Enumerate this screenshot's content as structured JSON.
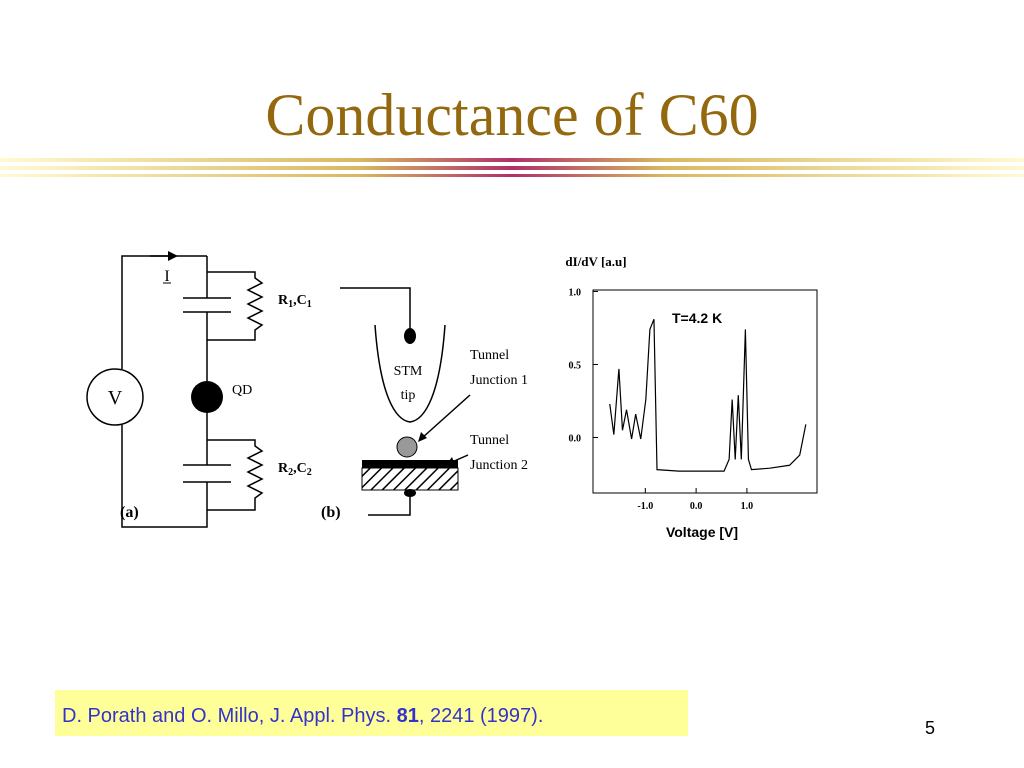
{
  "title": "Conductance of C60",
  "circuit": {
    "current": "I",
    "source": "V",
    "dot": "QD",
    "r1c1": [
      "R",
      "1",
      ",C",
      "1"
    ],
    "r2c2": [
      "R",
      "2",
      ",C",
      "2"
    ],
    "panel": "(a)"
  },
  "setup": {
    "tip": [
      "STM",
      "tip"
    ],
    "junction1": [
      "Tunnel",
      "Junction 1"
    ],
    "junction2": [
      "Tunnel",
      "Junction 2"
    ],
    "panel": "(b)"
  },
  "chart_data": {
    "type": "line",
    "ylabel": "dI/dV [a.u]",
    "xlabel": "Voltage [V]",
    "annotation": "T=4.2 K",
    "x": [
      -1.7,
      -1.62,
      -1.52,
      -1.45,
      -1.37,
      -1.27,
      -1.19,
      -1.09,
      -0.99,
      -0.91,
      -0.83,
      -0.77,
      -0.34,
      0.06,
      0.55,
      0.65,
      0.71,
      0.77,
      0.83,
      0.89,
      0.97,
      1.03,
      1.09,
      1.45,
      1.84,
      2.04,
      2.16
    ],
    "values": [
      0.23,
      0.02,
      0.47,
      0.05,
      0.19,
      -0.01,
      0.16,
      -0.01,
      0.26,
      0.74,
      0.81,
      -0.22,
      -0.23,
      -0.23,
      -0.23,
      -0.15,
      0.26,
      -0.15,
      0.29,
      -0.15,
      0.74,
      -0.15,
      -0.22,
      -0.21,
      -0.19,
      -0.12,
      0.09
    ],
    "color": "#000000",
    "xlim": [
      -2.03,
      2.38
    ],
    "ylim": [
      -0.38,
      1.01
    ],
    "xticks": [
      {
        "value": -1,
        "label": "-1.0"
      },
      {
        "value": 0,
        "label": "0.0"
      },
      {
        "value": 1,
        "label": "1.0"
      }
    ],
    "yticks": [
      {
        "value": 0,
        "label": "0.0"
      },
      {
        "value": 0.5,
        "label": "0.5"
      },
      {
        "value": 1,
        "label": "1.0"
      }
    ]
  },
  "citation": {
    "before": "D. Porath and O. Millo, J. Appl. Phys. ",
    "volume": "81",
    "after": ", 2241 (1997)."
  },
  "page_number": "5"
}
